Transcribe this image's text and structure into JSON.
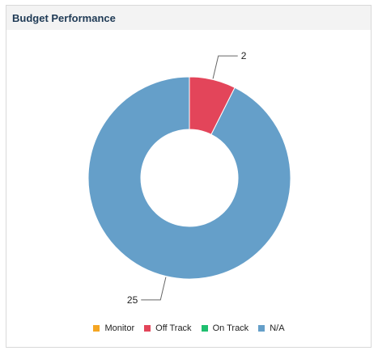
{
  "panel": {
    "title": "Budget Performance"
  },
  "chart_data": {
    "type": "pie",
    "donut": true,
    "legend_position": "bottom",
    "series": [
      {
        "name": "Monitor",
        "value": 0,
        "color": "#f5a623"
      },
      {
        "name": "Off Track",
        "value": 2,
        "color": "#e3455a"
      },
      {
        "name": "On Track",
        "value": 0,
        "color": "#1fbf6f"
      },
      {
        "name": "N/A",
        "value": 25,
        "color": "#659fc9"
      }
    ],
    "data_labels": [
      "2",
      "25"
    ]
  }
}
